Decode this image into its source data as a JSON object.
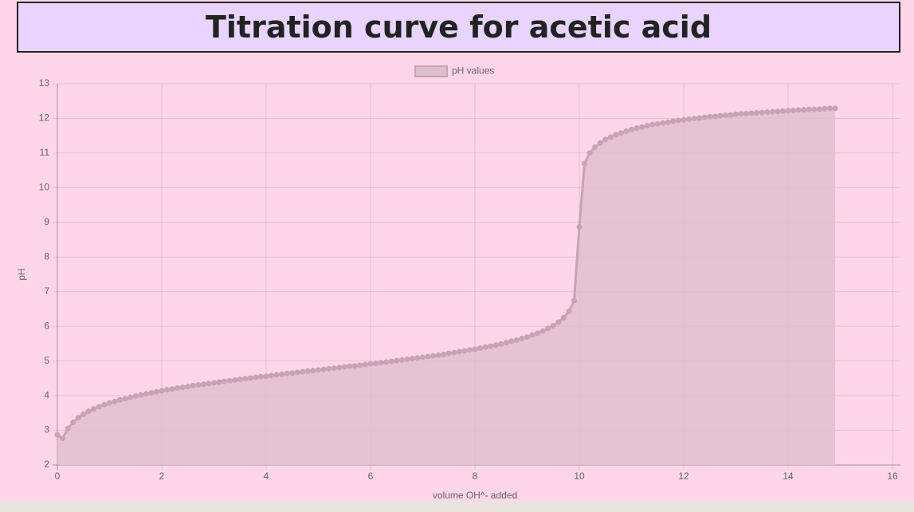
{
  "chart_data": {
    "type": "line",
    "title": "Titration curve for acetic acid",
    "xlabel": "volume OH^- added",
    "ylabel": "pH",
    "x": [
      0,
      0.1,
      0.2,
      0.3,
      0.4,
      0.5,
      0.6,
      0.7,
      0.8,
      0.9,
      1,
      1.1,
      1.2,
      1.3,
      1.4,
      1.5,
      1.6,
      1.7,
      1.8,
      1.9,
      2,
      2.1,
      2.2,
      2.3,
      2.4,
      2.5,
      2.6,
      2.7,
      2.8,
      2.9,
      3,
      3.1,
      3.2,
      3.3,
      3.4,
      3.5,
      3.6,
      3.7,
      3.8,
      3.9,
      4,
      4.1,
      4.2,
      4.3,
      4.4,
      4.5,
      4.6,
      4.7,
      4.8,
      4.9,
      5,
      5.1,
      5.2,
      5.3,
      5.4,
      5.5,
      5.6,
      5.7,
      5.8,
      5.9,
      6,
      6.1,
      6.2,
      6.3,
      6.4,
      6.5,
      6.6,
      6.7,
      6.8,
      6.9,
      7,
      7.1,
      7.2,
      7.3,
      7.4,
      7.5,
      7.6,
      7.7,
      7.8,
      7.9,
      8,
      8.1,
      8.2,
      8.3,
      8.4,
      8.5,
      8.6,
      8.7,
      8.8,
      8.9,
      9,
      9.1,
      9.2,
      9.3,
      9.4,
      9.5,
      9.6,
      9.7,
      9.8,
      9.9,
      10,
      10.1,
      10.2,
      10.3,
      10.4,
      10.5,
      10.6,
      10.7,
      10.8,
      10.9,
      11,
      11.1,
      11.2,
      11.3,
      11.4,
      11.5,
      11.6,
      11.7,
      11.8,
      11.9,
      12,
      12.1,
      12.2,
      12.3,
      12.4,
      12.5,
      12.6,
      12.7,
      12.8,
      12.9,
      13,
      13.1,
      13.2,
      13.3,
      13.4,
      13.5,
      13.6,
      13.7,
      13.8,
      13.9,
      14,
      14.1,
      14.2,
      14.3,
      14.4,
      14.5,
      14.6,
      14.7,
      14.8,
      14.9
    ],
    "series": [
      {
        "name": "pH values",
        "color": "#c9a3b5",
        "fill_color": "#e0bfcd",
        "values": [
          2.87,
          2.77,
          3.05,
          3.23,
          3.36,
          3.46,
          3.55,
          3.62,
          3.68,
          3.74,
          3.79,
          3.83,
          3.88,
          3.91,
          3.95,
          3.99,
          4.02,
          4.05,
          4.08,
          4.11,
          4.14,
          4.17,
          4.19,
          4.22,
          4.24,
          4.26,
          4.29,
          4.31,
          4.33,
          4.35,
          4.37,
          4.39,
          4.41,
          4.43,
          4.45,
          4.47,
          4.49,
          4.51,
          4.53,
          4.55,
          4.56,
          4.58,
          4.6,
          4.62,
          4.64,
          4.65,
          4.67,
          4.69,
          4.71,
          4.72,
          4.74,
          4.76,
          4.78,
          4.79,
          4.81,
          4.83,
          4.85,
          4.86,
          4.88,
          4.9,
          4.92,
          4.93,
          4.95,
          4.97,
          4.99,
          5.01,
          5.03,
          5.05,
          5.07,
          5.09,
          5.11,
          5.13,
          5.15,
          5.17,
          5.19,
          5.22,
          5.24,
          5.27,
          5.29,
          5.32,
          5.34,
          5.37,
          5.4,
          5.43,
          5.46,
          5.49,
          5.53,
          5.57,
          5.6,
          5.65,
          5.69,
          5.75,
          5.8,
          5.86,
          5.94,
          6.02,
          6.12,
          6.25,
          6.43,
          6.74,
          8.87,
          10.7,
          11,
          11.17,
          11.29,
          11.39,
          11.46,
          11.53,
          11.58,
          11.63,
          11.68,
          11.72,
          11.75,
          11.79,
          11.82,
          11.84,
          11.87,
          11.89,
          11.92,
          11.94,
          11.96,
          11.98,
          12,
          12.01,
          12.03,
          12.05,
          12.06,
          12.08,
          12.09,
          12.1,
          12.12,
          12.13,
          12.14,
          12.15,
          12.16,
          12.17,
          12.18,
          12.19,
          12.2,
          12.21,
          12.22,
          12.23,
          12.24,
          12.25,
          12.26,
          12.26,
          12.27,
          12.28,
          12.29,
          12.29
        ]
      }
    ],
    "xlim": [
      0,
      16
    ],
    "ylim": [
      2,
      13
    ],
    "xticks": [
      0,
      2,
      4,
      6,
      8,
      10,
      12,
      14,
      16
    ],
    "yticks": [
      2,
      3,
      4,
      5,
      6,
      7,
      8,
      9,
      10,
      11,
      12,
      13
    ],
    "grid": true,
    "fill": true,
    "legend": "top"
  }
}
